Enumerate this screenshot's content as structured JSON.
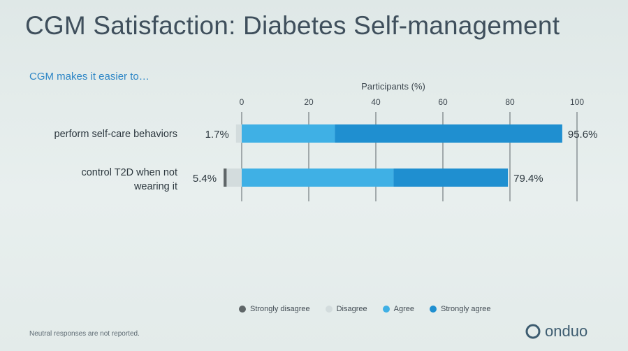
{
  "title": "CGM Satisfaction: Diabetes Self-management",
  "footnote": "Neutral responses are not reported.",
  "brand": {
    "name": "onduo",
    "logo_icon": "onduo-logo-icon"
  },
  "chart_data": {
    "type": "bar",
    "orientation": "horizontal",
    "stacking": "diverging-stacked",
    "subtitle": "CGM makes it easier to…",
    "xlabel": "Participants (%)",
    "xlim": [
      0,
      100
    ],
    "xticks": [
      "0",
      "20",
      "40",
      "60",
      "80",
      "100"
    ],
    "categories": [
      "perform self-care behaviors",
      "control T2D when not wearing it"
    ],
    "series": [
      {
        "name": "Strongly disagree",
        "color": "#5f6668",
        "values": [
          0,
          0.9
        ]
      },
      {
        "name": "Disagree",
        "color": "#d3dcdd",
        "values": [
          1.7,
          4.5
        ]
      },
      {
        "name": "Agree",
        "color": "#3fb0e5",
        "values": [
          27.8,
          45.3
        ]
      },
      {
        "name": "Strongly agree",
        "color": "#1f8fd0",
        "values": [
          67.8,
          34.1
        ]
      }
    ],
    "disagree_labels": [
      "1.7%",
      "5.4%"
    ],
    "agree_labels": [
      "95.6%",
      "79.4%"
    ],
    "legend_position": "bottom"
  }
}
